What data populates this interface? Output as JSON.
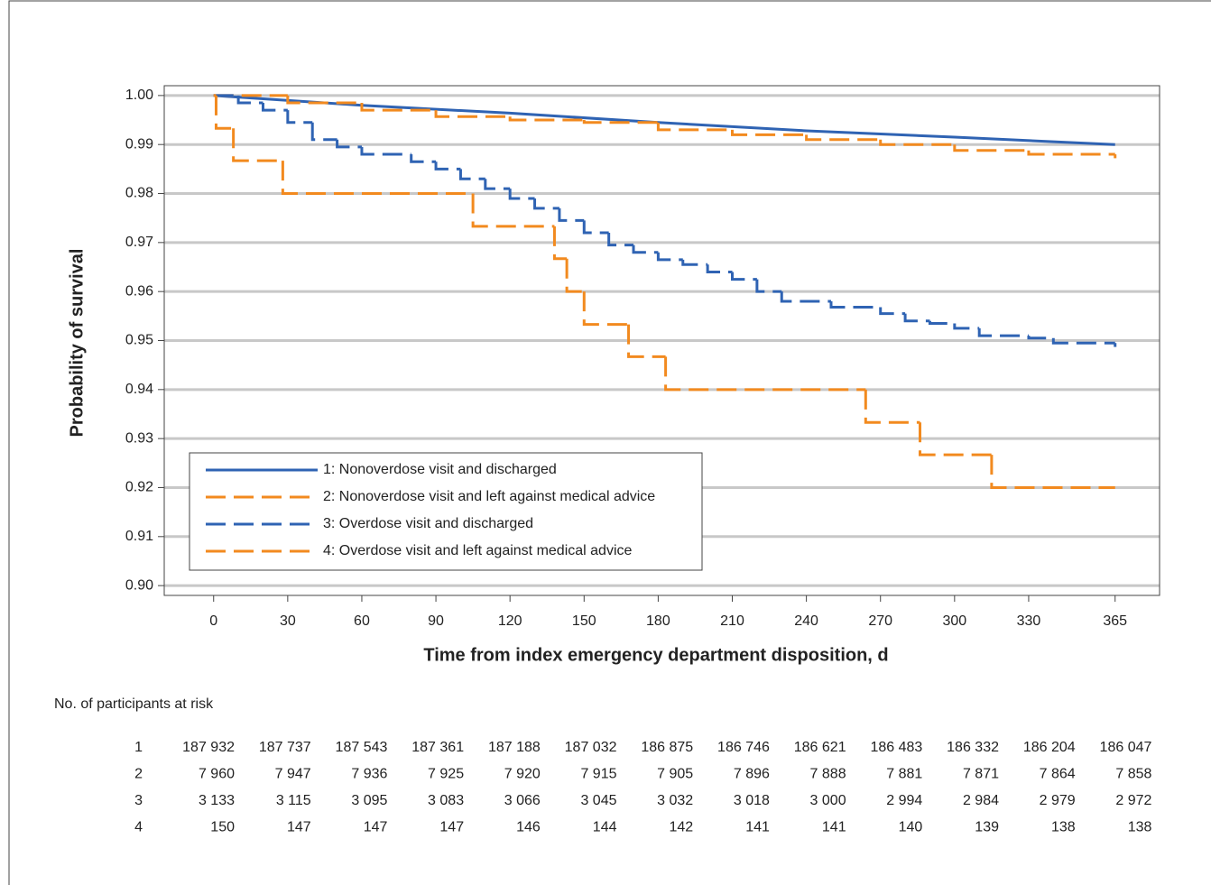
{
  "chart_data": {
    "type": "survival",
    "xlabel": "Time from index emergency department disposition, d",
    "ylabel": "Probability of survival",
    "xlim": [
      -20,
      383
    ],
    "ylim": [
      0.898,
      1.002
    ],
    "xticks": [
      0,
      30,
      60,
      90,
      120,
      150,
      180,
      210,
      240,
      270,
      300,
      330,
      365
    ],
    "yticks": [
      {
        "value": 0.9,
        "label": "0.90"
      },
      0.91,
      0.92,
      0.93,
      0.94,
      0.95,
      0.96,
      0.97,
      0.98,
      0.99,
      {
        "value": 1,
        "label": "1.00"
      }
    ],
    "grid": true,
    "legend": "lower left",
    "series": [
      {
        "name": "1: Nonoverdose visit and discharged",
        "color": "#2f63b3",
        "linestyle": "solid",
        "drawstyle": "line",
        "x": [
          0,
          60,
          120,
          180,
          240,
          300,
          365
        ],
        "values": [
          1,
          0.998,
          0.9964,
          0.9945,
          0.9928,
          0.9915,
          0.99
        ]
      },
      {
        "name": "2: Nonoverdose visit and left against medical advice",
        "color": "#f28a1f",
        "linestyle": "dashed",
        "drawstyle": "steps",
        "x": [
          0,
          30,
          60,
          90,
          120,
          150,
          180,
          210,
          240,
          270,
          300,
          330,
          365
        ],
        "values": [
          1,
          0.9985,
          0.997,
          0.9957,
          0.995,
          0.9945,
          0.993,
          0.992,
          0.991,
          0.99,
          0.9888,
          0.988,
          0.9872
        ]
      },
      {
        "name": "3: Overdose visit and discharged",
        "color": "#2f63b3",
        "linestyle": "dashed",
        "drawstyle": "steps",
        "x": [
          0,
          10,
          20,
          30,
          40,
          50,
          60,
          80,
          90,
          100,
          110,
          120,
          130,
          140,
          150,
          160,
          170,
          180,
          190,
          200,
          210,
          220,
          230,
          250,
          270,
          280,
          290,
          300,
          310,
          330,
          340,
          365
        ],
        "values": [
          1,
          0.9985,
          0.997,
          0.9945,
          0.991,
          0.9895,
          0.988,
          0.9865,
          0.985,
          0.983,
          0.981,
          0.979,
          0.977,
          0.9745,
          0.972,
          0.9695,
          0.968,
          0.9665,
          0.9655,
          0.964,
          0.9625,
          0.96,
          0.958,
          0.9568,
          0.9555,
          0.954,
          0.9535,
          0.9525,
          0.951,
          0.9505,
          0.9495,
          0.9487
        ]
      },
      {
        "name": "4: Overdose visit and left against medical advice",
        "color": "#f28a1f",
        "linestyle": "dashed",
        "drawstyle": "steps",
        "x": [
          0,
          1,
          8,
          28,
          105,
          138,
          143,
          150,
          168,
          183,
          264,
          286,
          315,
          365
        ],
        "values": [
          1,
          0.9933,
          0.9867,
          0.98,
          0.9733,
          0.9667,
          0.96,
          0.9533,
          0.9467,
          0.94,
          0.9333,
          0.9267,
          0.92,
          0.92
        ]
      }
    ]
  },
  "risk_table": {
    "title": "No. of participants at risk",
    "rows": [
      {
        "label": "1",
        "values": [
          "187 932",
          "187 737",
          "187 543",
          "187 361",
          "187 188",
          "187 032",
          "186 875",
          "186 746",
          "186 621",
          "186 483",
          "186 332",
          "186 204",
          "186 047"
        ]
      },
      {
        "label": "2",
        "values": [
          "7 960",
          "7 947",
          "7 936",
          "7 925",
          "7 920",
          "7 915",
          "7 905",
          "7 896",
          "7 888",
          "7 881",
          "7 871",
          "7 864",
          "7 858"
        ]
      },
      {
        "label": "3",
        "values": [
          "3 133",
          "3 115",
          "3 095",
          "3 083",
          "3 066",
          "3 045",
          "3 032",
          "3 018",
          "3 000",
          "2 994",
          "2 984",
          "2 979",
          "2 972"
        ]
      },
      {
        "label": "4",
        "values": [
          "150",
          "147",
          "147",
          "147",
          "146",
          "144",
          "142",
          "141",
          "141",
          "140",
          "139",
          "138",
          "138"
        ]
      }
    ]
  }
}
